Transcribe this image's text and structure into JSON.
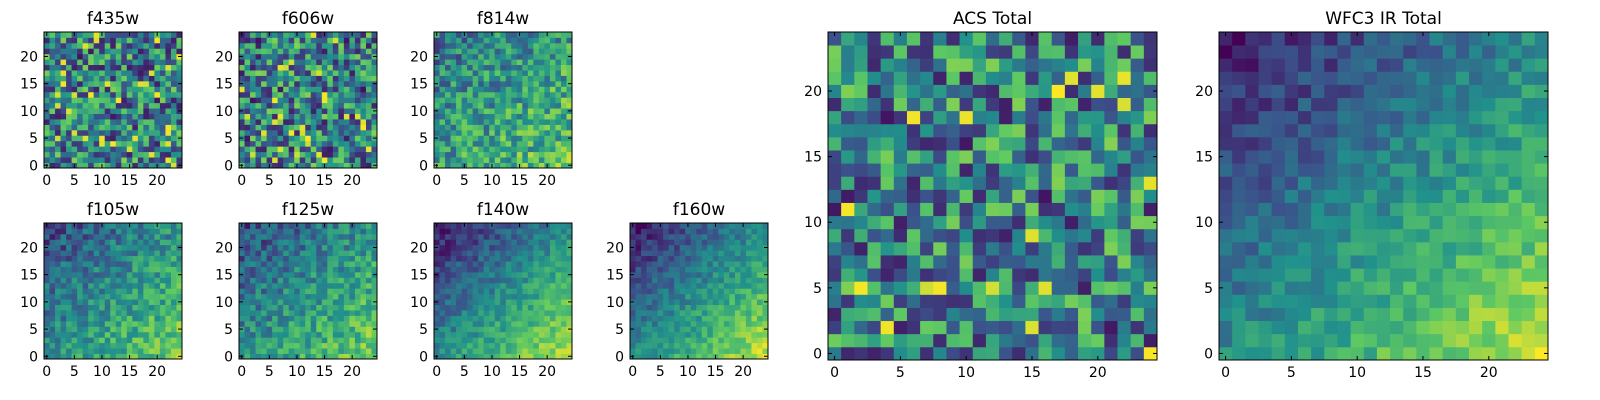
{
  "chart_data": [
    {
      "type": "heatmap",
      "title": "f435w",
      "x_ticks": [
        0,
        5,
        10,
        15,
        20
      ],
      "y_ticks": [
        0,
        5,
        10,
        15,
        20
      ],
      "xlim": [
        -0.5,
        24.5
      ],
      "ylim": [
        -0.5,
        24.5
      ],
      "grid_size": 25,
      "field": "noise",
      "colormap": "viridis"
    },
    {
      "type": "heatmap",
      "title": "f606w",
      "x_ticks": [
        0,
        5,
        10,
        15,
        20
      ],
      "y_ticks": [
        0,
        5,
        10,
        15,
        20
      ],
      "xlim": [
        -0.5,
        24.5
      ],
      "ylim": [
        -0.5,
        24.5
      ],
      "grid_size": 25,
      "field": "noise",
      "colormap": "viridis"
    },
    {
      "type": "heatmap",
      "title": "f814w",
      "x_ticks": [
        0,
        5,
        10,
        15,
        20
      ],
      "y_ticks": [
        0,
        5,
        10,
        15,
        20
      ],
      "xlim": [
        -0.5,
        24.5
      ],
      "ylim": [
        -0.5,
        24.5
      ],
      "grid_size": 25,
      "field": "noise-gradient",
      "colormap": "viridis"
    },
    {
      "type": "heatmap",
      "title": "f105w",
      "x_ticks": [
        0,
        5,
        10,
        15,
        20
      ],
      "y_ticks": [
        0,
        5,
        10,
        15,
        20
      ],
      "xlim": [
        -0.5,
        24.5
      ],
      "ylim": [
        -0.5,
        24.5
      ],
      "grid_size": 25,
      "field": "smooth-gradient",
      "colormap": "viridis"
    },
    {
      "type": "heatmap",
      "title": "f125w",
      "x_ticks": [
        0,
        5,
        10,
        15,
        20
      ],
      "y_ticks": [
        0,
        5,
        10,
        15,
        20
      ],
      "xlim": [
        -0.5,
        24.5
      ],
      "ylim": [
        -0.5,
        24.5
      ],
      "grid_size": 25,
      "field": "smooth-gradient",
      "colormap": "viridis"
    },
    {
      "type": "heatmap",
      "title": "f140w",
      "x_ticks": [
        0,
        5,
        10,
        15,
        20
      ],
      "y_ticks": [
        0,
        5,
        10,
        15,
        20
      ],
      "xlim": [
        -0.5,
        24.5
      ],
      "ylim": [
        -0.5,
        24.5
      ],
      "grid_size": 25,
      "field": "strong-gradient",
      "colormap": "viridis"
    },
    {
      "type": "heatmap",
      "title": "f160w",
      "x_ticks": [
        0,
        5,
        10,
        15,
        20
      ],
      "y_ticks": [
        0,
        5,
        10,
        15,
        20
      ],
      "xlim": [
        -0.5,
        24.5
      ],
      "ylim": [
        -0.5,
        24.5
      ],
      "grid_size": 25,
      "field": "strong-gradient",
      "colormap": "viridis"
    },
    {
      "type": "heatmap",
      "title": "ACS Total",
      "x_ticks": [
        0,
        5,
        10,
        15,
        20
      ],
      "y_ticks": [
        0,
        5,
        10,
        15,
        20
      ],
      "xlim": [
        -0.5,
        24.5
      ],
      "ylim": [
        -0.5,
        24.5
      ],
      "grid_size": 25,
      "field": "noise",
      "colormap": "viridis"
    },
    {
      "type": "heatmap",
      "title": "WFC3 IR Total",
      "x_ticks": [
        0,
        5,
        10,
        15,
        20
      ],
      "y_ticks": [
        0,
        5,
        10,
        15,
        20
      ],
      "xlim": [
        -0.5,
        24.5
      ],
      "ylim": [
        -0.5,
        24.5
      ],
      "grid_size": 25,
      "field": "strong-gradient",
      "colormap": "viridis"
    }
  ],
  "colors": {
    "viridis_stops": [
      "#440154",
      "#3b528b",
      "#21918c",
      "#5ec962",
      "#fde725"
    ],
    "frame": "#000000",
    "background": "#ffffff"
  }
}
